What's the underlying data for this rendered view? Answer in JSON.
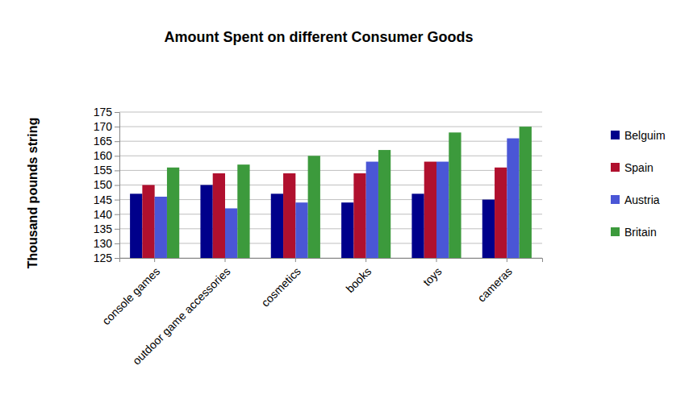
{
  "chart_data": {
    "type": "bar",
    "title": "Amount Spent on different Consumer Goods",
    "ylabel": "Thousand pounds string",
    "categories": [
      "console games",
      "outdoor game accessories",
      "cosmetics",
      "books",
      "toys",
      "cameras"
    ],
    "series": [
      {
        "name": "Belguim",
        "color": "#00008b",
        "values": [
          147,
          150,
          147,
          144,
          147,
          145
        ]
      },
      {
        "name": "Spain",
        "color": "#b0102e",
        "values": [
          150,
          154,
          154,
          154,
          158,
          156
        ]
      },
      {
        "name": "Austria",
        "color": "#4a56d6",
        "values": [
          146,
          142,
          144,
          158,
          158,
          166
        ]
      },
      {
        "name": "Britain",
        "color": "#3c9a3c",
        "values": [
          156,
          157,
          160,
          162,
          168,
          170
        ]
      }
    ],
    "ylim": [
      125,
      175
    ],
    "yticks": [
      125,
      130,
      135,
      140,
      145,
      150,
      155,
      160,
      165,
      170,
      175
    ],
    "grid": true,
    "legend": "right"
  }
}
